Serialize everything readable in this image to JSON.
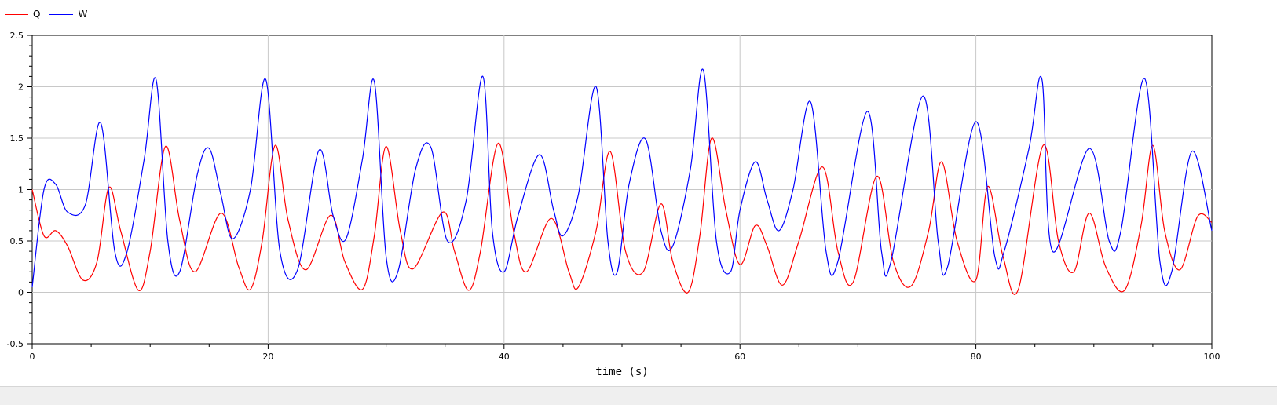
{
  "legend": {
    "items": [
      {
        "label": "Q",
        "color": "#ff0000"
      },
      {
        "label": "W",
        "color": "#0000ff"
      }
    ]
  },
  "colors": {
    "grid": "#c8c8c8",
    "axis": "#000000",
    "background": "#ffffff"
  },
  "chart_data": {
    "type": "line",
    "title": "",
    "xlabel": "time (s)",
    "ylabel": "",
    "xlim": [
      0,
      100
    ],
    "ylim": [
      -0.5,
      2.5
    ],
    "x_ticks": [
      0,
      20,
      40,
      60,
      80,
      100
    ],
    "y_ticks": [
      -0.5,
      0,
      0.5,
      1,
      1.5,
      2,
      2.5
    ],
    "x_tick_labels": [
      "0",
      "20",
      "40",
      "60",
      "80",
      "100"
    ],
    "y_tick_labels": [
      "-0.5",
      "0",
      "0.5",
      "1",
      "1.5",
      "2",
      "2.5"
    ],
    "grid": true,
    "legend_position": "top-left",
    "series": [
      {
        "name": "Q",
        "color": "#ff0000",
        "x": [
          0,
          1,
          2,
          3,
          4.3,
          5.5,
          6.5,
          7.5,
          9,
          10,
          11.3,
          12.5,
          13.8,
          16,
          17.5,
          18.5,
          19.5,
          20.6,
          21.7,
          23.2,
          25.3,
          26.5,
          28,
          29,
          30,
          31.2,
          32.3,
          34.8,
          35.8,
          37,
          38,
          39.5,
          40.8,
          41.9,
          44,
          45.5,
          46.3,
          47.8,
          49,
          50.3,
          51.8,
          53.3,
          54.3,
          55.6,
          56.6,
          57.6,
          58.8,
          60,
          61.3,
          62.3,
          63.6,
          65,
          67,
          68.3,
          69.6,
          71.6,
          73,
          74.5,
          76,
          77.1,
          78.4,
          80,
          81,
          82.3,
          83.6,
          85.7,
          87,
          88.3,
          89.6,
          91,
          92.6,
          94,
          95,
          96,
          97.3,
          98.8,
          100
        ],
        "values": [
          1.0,
          0.55,
          0.6,
          0.45,
          0.12,
          0.3,
          1.02,
          0.6,
          0.02,
          0.4,
          1.42,
          0.7,
          0.2,
          0.77,
          0.25,
          0.03,
          0.5,
          1.43,
          0.7,
          0.22,
          0.75,
          0.3,
          0.03,
          0.55,
          1.42,
          0.6,
          0.23,
          0.78,
          0.4,
          0.02,
          0.4,
          1.45,
          0.6,
          0.2,
          0.72,
          0.2,
          0.05,
          0.6,
          1.37,
          0.4,
          0.2,
          0.86,
          0.3,
          0.0,
          0.55,
          1.5,
          0.8,
          0.27,
          0.65,
          0.45,
          0.07,
          0.5,
          1.22,
          0.4,
          0.1,
          1.13,
          0.3,
          0.06,
          0.6,
          1.27,
          0.5,
          0.12,
          1.03,
          0.35,
          0.03,
          1.43,
          0.5,
          0.2,
          0.77,
          0.25,
          0.02,
          0.65,
          1.43,
          0.6,
          0.22,
          0.74,
          0.68
        ]
      },
      {
        "name": "W",
        "color": "#0000ff",
        "x": [
          0,
          1,
          2,
          3,
          4.5,
          5.8,
          7,
          8,
          9.5,
          10.5,
          11.5,
          12.5,
          14,
          15,
          16,
          17,
          18.5,
          19.8,
          21,
          22.5,
          24.3,
          25.5,
          26.6,
          28,
          29,
          30,
          31,
          32.5,
          33.8,
          35.2,
          36.8,
          38.2,
          39,
          40,
          41.2,
          43,
          44.2,
          45,
          46.3,
          47.8,
          48.8,
          49.6,
          50.6,
          52,
          53.3,
          54.3,
          55.8,
          56.9,
          58,
          59.2,
          60,
          61.3,
          62.3,
          63.3,
          64.5,
          66,
          67.3,
          68.3,
          70.8,
          72,
          72.8,
          75.5,
          76.8,
          77.6,
          80,
          81.6,
          82.4,
          84.5,
          85.6,
          86.5,
          89.6,
          91.3,
          92.3,
          94.3,
          95.6,
          96.6,
          98.3,
          100
        ],
        "values": [
          0.05,
          1.0,
          1.05,
          0.78,
          0.85,
          1.65,
          0.4,
          0.38,
          1.3,
          2.07,
          0.5,
          0.2,
          1.15,
          1.4,
          0.95,
          0.52,
          1.0,
          2.07,
          0.4,
          0.22,
          1.38,
          0.75,
          0.52,
          1.3,
          2.05,
          0.35,
          0.2,
          1.2,
          1.41,
          0.5,
          0.9,
          2.1,
          0.6,
          0.2,
          0.75,
          1.34,
          0.8,
          0.55,
          0.95,
          2.0,
          0.5,
          0.2,
          1.05,
          1.49,
          0.6,
          0.45,
          1.2,
          2.16,
          0.5,
          0.2,
          0.8,
          1.27,
          0.9,
          0.6,
          1.0,
          1.85,
          0.4,
          0.3,
          1.76,
          0.4,
          0.3,
          1.91,
          0.5,
          0.25,
          1.66,
          0.35,
          0.4,
          1.4,
          2.07,
          0.4,
          1.4,
          0.5,
          0.6,
          2.08,
          0.3,
          0.2,
          1.37,
          0.6
        ]
      }
    ]
  }
}
